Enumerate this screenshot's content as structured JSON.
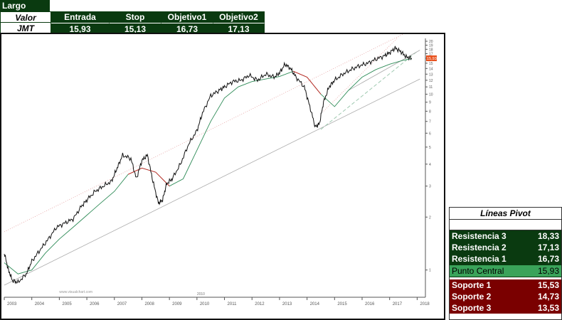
{
  "trade": {
    "title": "Largo",
    "headers": [
      "Valor",
      "Entrada",
      "Stop",
      "Objetivo1",
      "Objetivo2"
    ],
    "values": [
      "JMT",
      "15,93",
      "15,13",
      "16,73",
      "17,13"
    ]
  },
  "pivot": {
    "title": "Líneas Pivot",
    "resistance": [
      {
        "label": "Resistencia 3",
        "value": "18,33"
      },
      {
        "label": "Resistencia 2",
        "value": "17,13"
      },
      {
        "label": "Resistencia 1",
        "value": "16,73"
      }
    ],
    "central": {
      "label": "Punto Central",
      "value": "15,93"
    },
    "support": [
      {
        "label": "Soporte 1",
        "value": "15,53"
      },
      {
        "label": "Soporte 2",
        "value": "14,73"
      },
      {
        "label": "Soporte 3",
        "value": "13,53"
      }
    ]
  },
  "chart_data": {
    "type": "line",
    "scale": "log",
    "ylim": [
      0.7,
      20
    ],
    "xlim": [
      2003.0,
      2018.3
    ],
    "x_ticks": [
      "2003",
      "2004",
      "2005",
      "2006",
      "2007",
      "2008",
      "2009",
      "2010",
      "2011",
      "2012",
      "2013",
      "2014",
      "2015",
      "2016",
      "2017",
      "2018"
    ],
    "y_ticks": [
      1,
      2,
      3,
      4,
      5,
      6,
      7,
      8,
      9,
      10,
      11,
      12,
      13,
      14,
      15,
      16,
      17,
      18,
      19,
      20
    ],
    "watermark": "www.visualchart.com",
    "bottom_label": "2010",
    "last_price_label": "15,93",
    "colors": {
      "price": "#111111",
      "ma_up": "#2e8b57",
      "ma_down": "#cc2222",
      "channel": "#aaaaaa",
      "upper_dotted": "#e6a0a0",
      "trend_dashed": "#9fc9b0",
      "last_label_bg": "#e8501c"
    },
    "series": [
      {
        "name": "",
        "x": [
          2003.0,
          2003.15,
          2003.3,
          2003.5,
          2003.8,
          2004.0,
          2004.3,
          2004.6,
          2004.9,
          2005.2,
          2005.5,
          2005.8,
          2006.0,
          2006.3,
          2006.6,
          2006.9,
          2007.1,
          2007.3,
          2007.6,
          2007.8,
          2008.0,
          2008.2,
          2008.4,
          2008.6,
          2008.75,
          2008.9,
          2009.1,
          2009.4,
          2009.7,
          2010.0,
          2010.2,
          2010.5,
          2010.8,
          2011.0,
          2011.3,
          2011.6,
          2011.9,
          2012.2,
          2012.5,
          2012.8,
          2013.0,
          2013.2,
          2013.4,
          2013.6,
          2013.9,
          2014.1,
          2014.3,
          2014.45,
          2014.6,
          2014.8,
          2015.0,
          2015.3,
          2015.6,
          2015.9,
          2016.2,
          2016.5,
          2016.8,
          2017.0,
          2017.2,
          2017.4,
          2017.6,
          2017.8
        ],
        "values": [
          1.25,
          1.0,
          0.87,
          0.85,
          0.95,
          1.12,
          1.3,
          1.5,
          1.75,
          1.85,
          1.95,
          2.3,
          2.5,
          2.8,
          3.0,
          3.2,
          3.8,
          4.5,
          4.3,
          3.3,
          4.2,
          4.5,
          3.2,
          2.4,
          2.5,
          3.1,
          3.3,
          4.0,
          5.2,
          6.2,
          7.8,
          9.8,
          10.5,
          11.0,
          11.8,
          12.0,
          12.8,
          12.0,
          13.0,
          12.5,
          13.2,
          14.8,
          14.0,
          12.5,
          11.0,
          8.5,
          6.5,
          6.8,
          9.0,
          11.0,
          12.0,
          13.0,
          13.8,
          14.5,
          15.0,
          15.8,
          16.5,
          17.2,
          18.3,
          17.5,
          16.3,
          16.0
        ]
      },
      {
        "name": "",
        "x": [
          2003.0,
          2003.5,
          2004.0,
          2004.5,
          2005.0,
          2005.5,
          2006.0,
          2006.5,
          2007.0,
          2007.5,
          2008.0,
          2008.5,
          2009.0,
          2009.5,
          2010.0,
          2010.5,
          2011.0,
          2011.5,
          2012.0,
          2012.5,
          2013.0,
          2013.5,
          2014.0,
          2014.5,
          2015.0,
          2015.5,
          2016.0,
          2016.5,
          2017.0,
          2017.5,
          2017.8
        ],
        "values": [
          1.1,
          0.95,
          1.0,
          1.25,
          1.5,
          1.75,
          2.05,
          2.4,
          2.8,
          3.5,
          3.8,
          3.6,
          3.0,
          3.3,
          4.8,
          7.0,
          9.5,
          11.0,
          11.8,
          12.2,
          12.6,
          13.5,
          12.5,
          10.0,
          8.5,
          10.5,
          12.5,
          13.8,
          14.8,
          15.6,
          15.9
        ]
      }
    ]
  }
}
